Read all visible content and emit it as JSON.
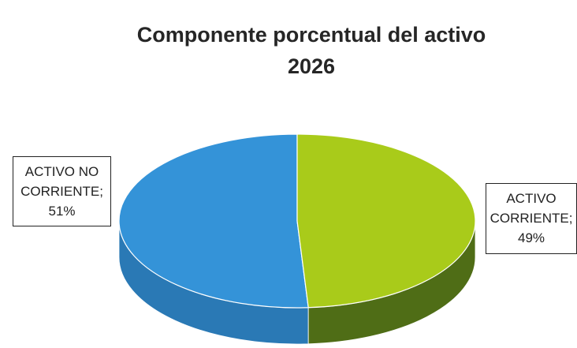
{
  "chart_data": {
    "type": "pie",
    "style": "3d",
    "title": [
      "Componente porcentual del activo",
      "2026"
    ],
    "slices": [
      {
        "name": [
          "ACTIVO NO",
          "CORRIENTE;"
        ],
        "value": 51,
        "value_label": "51%",
        "color": "#3493d8",
        "side_color": "#2a79b5"
      },
      {
        "name": [
          "ACTIVO",
          "CORRIENTE;"
        ],
        "value": 49,
        "value_label": "49%",
        "color": "#a9cb1a",
        "side_color": "#4f6d16"
      }
    ]
  }
}
